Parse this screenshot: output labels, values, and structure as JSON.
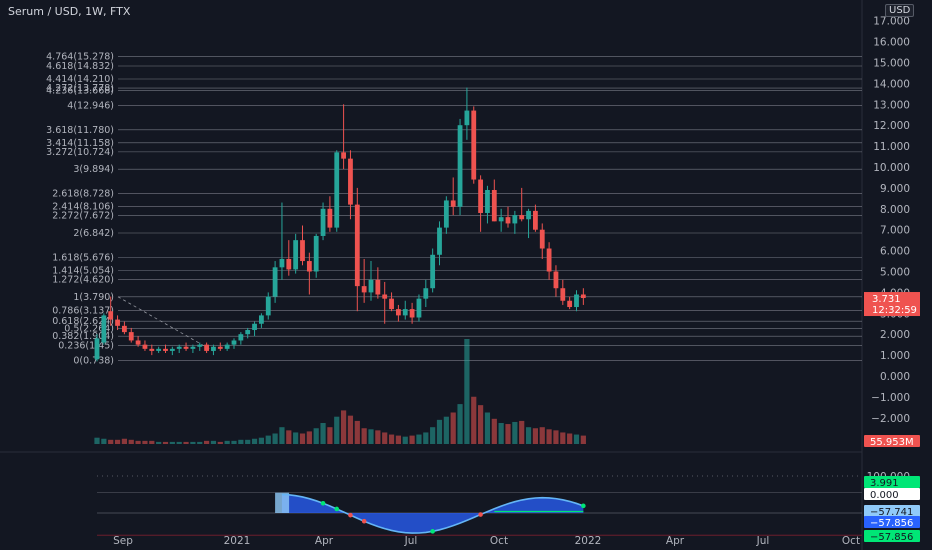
{
  "header": {
    "title": "Serum / USD, 1W, FTX",
    "currency": "USD"
  },
  "colors": {
    "up": "#26a69a",
    "down": "#ef5350",
    "fib": "#a3a6af",
    "bg": "#131722",
    "osc_fill": "#2962ff",
    "osc_line": "#64b5f6"
  },
  "chart_data": {
    "type": "candlestick",
    "symbol": "Serum / USD",
    "interval": "1W",
    "exchange": "FTX",
    "y_axis": {
      "ticks": [
        "17.000",
        "16.000",
        "15.000",
        "14.000",
        "13.000",
        "12.000",
        "11.000",
        "10.000",
        "9.000",
        "8.000",
        "7.000",
        "6.000",
        "5.000",
        "4.000",
        "3.000",
        "2.000",
        "1.000",
        "0.000",
        "−1.000",
        "−2.000"
      ],
      "range": [
        -2.5,
        17.5
      ]
    },
    "x_axis": {
      "labels": [
        "Sep",
        "2021",
        "Apr",
        "Jul",
        "Oct",
        "2022",
        "Apr",
        "Jul",
        "Oct"
      ]
    },
    "last_price": "3.731",
    "countdown": "12:32:59",
    "fib_levels": [
      {
        "label": "4.764(15.278)",
        "value": 15.278
      },
      {
        "label": "4.618(14.832)",
        "value": 14.832
      },
      {
        "label": "4.414(14.210)",
        "value": 14.21
      },
      {
        "label": "4.272(13.778)",
        "value": 13.778
      },
      {
        "label": "4.236(13.668)",
        "value": 13.668
      },
      {
        "label": "4(12.946)",
        "value": 12.946
      },
      {
        "label": "3.618(11.780)",
        "value": 11.78
      },
      {
        "label": "3.414(11.158)",
        "value": 11.158
      },
      {
        "label": "3.272(10.724)",
        "value": 10.724
      },
      {
        "label": "3(9.894)",
        "value": 9.894
      },
      {
        "label": "2.618(8.728)",
        "value": 8.728
      },
      {
        "label": "2.414(8.106)",
        "value": 8.106
      },
      {
        "label": "2.272(7.672)",
        "value": 7.672
      },
      {
        "label": "2(6.842)",
        "value": 6.842
      },
      {
        "label": "1.618(5.676)",
        "value": 5.676
      },
      {
        "label": "1.414(5.054)",
        "value": 5.054
      },
      {
        "label": "1.272(4.620)",
        "value": 4.62
      },
      {
        "label": "1(3.790)",
        "value": 3.79
      },
      {
        "label": "0.786(3.137)",
        "value": 3.137
      },
      {
        "label": "0.618(2.624)",
        "value": 2.624
      },
      {
        "label": "0.5(2.264)",
        "value": 2.264
      },
      {
        "label": "0.382(1.904)",
        "value": 1.904
      },
      {
        "label": "0.236(1.45)",
        "value": 1.45
      },
      {
        "label": "0(0.738)",
        "value": 0.738
      }
    ],
    "candles": [
      [
        0.8,
        2.0,
        0.7,
        1.8
      ],
      [
        1.6,
        3.0,
        1.5,
        2.9
      ],
      [
        3.1,
        3.8,
        2.4,
        2.7
      ],
      [
        2.7,
        2.9,
        2.2,
        2.4
      ],
      [
        2.4,
        2.6,
        2.0,
        2.1
      ],
      [
        2.1,
        2.3,
        1.6,
        1.7
      ],
      [
        1.7,
        1.9,
        1.4,
        1.5
      ],
      [
        1.5,
        1.7,
        1.2,
        1.3
      ],
      [
        1.3,
        1.5,
        1.0,
        1.2
      ],
      [
        1.2,
        1.4,
        1.1,
        1.3
      ],
      [
        1.3,
        1.5,
        1.1,
        1.2
      ],
      [
        1.2,
        1.4,
        1.0,
        1.3
      ],
      [
        1.3,
        1.5,
        1.1,
        1.4
      ],
      [
        1.4,
        1.6,
        1.2,
        1.3
      ],
      [
        1.3,
        1.5,
        1.1,
        1.4
      ],
      [
        1.4,
        1.6,
        1.2,
        1.5
      ],
      [
        1.5,
        1.6,
        1.1,
        1.2
      ],
      [
        1.2,
        1.5,
        1.0,
        1.4
      ],
      [
        1.4,
        1.6,
        1.2,
        1.3
      ],
      [
        1.3,
        1.6,
        1.2,
        1.5
      ],
      [
        1.5,
        1.8,
        1.3,
        1.7
      ],
      [
        1.7,
        2.1,
        1.5,
        2.0
      ],
      [
        2.0,
        2.3,
        1.8,
        2.2
      ],
      [
        2.2,
        2.6,
        1.9,
        2.5
      ],
      [
        2.5,
        3.0,
        2.3,
        2.9
      ],
      [
        2.9,
        4.0,
        2.7,
        3.8
      ],
      [
        3.8,
        5.5,
        3.5,
        5.2
      ],
      [
        5.2,
        8.3,
        4.6,
        5.6
      ],
      [
        5.6,
        6.5,
        4.8,
        5.1
      ],
      [
        5.1,
        6.8,
        4.9,
        6.5
      ],
      [
        6.5,
        7.2,
        5.3,
        5.5
      ],
      [
        5.5,
        5.9,
        3.9,
        5.0
      ],
      [
        5.0,
        6.8,
        4.7,
        6.7
      ],
      [
        6.7,
        8.3,
        6.5,
        8.0
      ],
      [
        8.0,
        8.6,
        6.9,
        7.1
      ],
      [
        7.1,
        10.8,
        6.9,
        10.7
      ],
      [
        10.7,
        13.0,
        9.9,
        10.4
      ],
      [
        10.4,
        10.8,
        7.5,
        8.2
      ],
      [
        8.2,
        9.0,
        3.1,
        4.3
      ],
      [
        4.3,
        5.6,
        3.5,
        4.0
      ],
      [
        4.0,
        5.5,
        3.6,
        4.6
      ],
      [
        4.6,
        5.2,
        3.7,
        3.9
      ],
      [
        3.9,
        4.5,
        2.5,
        3.7
      ],
      [
        3.7,
        4.0,
        3.1,
        3.2
      ],
      [
        3.2,
        3.4,
        2.6,
        2.9
      ],
      [
        2.9,
        3.6,
        2.7,
        3.2
      ],
      [
        3.2,
        3.5,
        2.5,
        2.8
      ],
      [
        2.8,
        3.9,
        2.6,
        3.7
      ],
      [
        3.7,
        4.6,
        3.3,
        4.2
      ],
      [
        4.2,
        6.1,
        4.0,
        5.8
      ],
      [
        5.8,
        7.4,
        5.3,
        7.1
      ],
      [
        7.1,
        8.6,
        6.8,
        8.4
      ],
      [
        8.4,
        9.5,
        7.7,
        8.1
      ],
      [
        8.1,
        12.3,
        7.7,
        12.0
      ],
      [
        12.0,
        13.8,
        11.3,
        12.7
      ],
      [
        12.7,
        12.9,
        9.2,
        9.4
      ],
      [
        9.4,
        9.6,
        6.9,
        7.8
      ],
      [
        7.8,
        9.1,
        7.3,
        8.9
      ],
      [
        8.9,
        9.4,
        7.4,
        7.4
      ],
      [
        7.4,
        8.0,
        6.9,
        7.6
      ],
      [
        7.6,
        8.1,
        7.1,
        7.3
      ],
      [
        7.3,
        7.9,
        6.8,
        7.7
      ],
      [
        7.7,
        9.0,
        7.4,
        7.5
      ],
      [
        7.5,
        8.0,
        6.6,
        7.9
      ],
      [
        7.9,
        8.2,
        6.9,
        7.0
      ],
      [
        7.0,
        7.3,
        5.6,
        6.1
      ],
      [
        6.1,
        6.4,
        4.6,
        5.0
      ],
      [
        5.0,
        5.3,
        3.8,
        4.2
      ],
      [
        4.2,
        4.6,
        3.4,
        3.6
      ],
      [
        3.6,
        3.8,
        3.2,
        3.3
      ],
      [
        3.3,
        4.1,
        3.1,
        3.9
      ],
      [
        3.9,
        4.2,
        3.4,
        3.731
      ]
    ],
    "volume_label": "55.953M",
    "volume": [
      0.6,
      0.5,
      0.4,
      0.4,
      0.5,
      0.4,
      0.3,
      0.3,
      0.3,
      0.2,
      0.2,
      0.2,
      0.2,
      0.2,
      0.2,
      0.2,
      0.3,
      0.3,
      0.2,
      0.3,
      0.3,
      0.4,
      0.4,
      0.5,
      0.6,
      0.8,
      1.0,
      1.6,
      1.3,
      1.1,
      1.0,
      1.2,
      1.5,
      2.0,
      1.6,
      2.6,
      3.2,
      2.7,
      2.2,
      1.5,
      1.4,
      1.3,
      1.1,
      0.9,
      0.8,
      0.7,
      0.8,
      0.9,
      1.1,
      1.6,
      2.3,
      2.6,
      3.0,
      3.8,
      10.0,
      4.5,
      3.7,
      3.0,
      2.4,
      2.0,
      1.9,
      2.1,
      2.2,
      1.6,
      1.5,
      1.6,
      1.4,
      1.3,
      1.1,
      1.0,
      0.9,
      0.8
    ],
    "oscillator": {
      "ticks": [
        "100.000",
        "3.991",
        "0.000",
        "−57.741",
        "−57.856",
        "−57.856"
      ],
      "labels": [
        "3.991",
        "0.000",
        "−57.741",
        "−57.856",
        "−57.856"
      ],
      "range": [
        -70,
        110
      ]
    }
  }
}
